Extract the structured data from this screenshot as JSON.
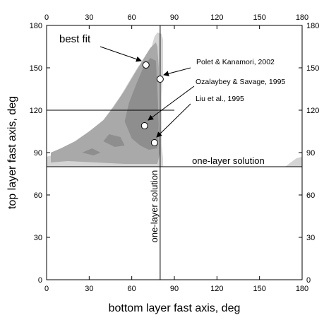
{
  "chart_data": {
    "type": "heatmap",
    "xlabel": "bottom layer fast axis, deg",
    "ylabel": "top layer fast axis, deg",
    "xlim": [
      0,
      180
    ],
    "ylim": [
      0,
      180
    ],
    "xticks": [
      "0",
      "30",
      "60",
      "90",
      "120",
      "150",
      "180"
    ],
    "yticks": [
      "0",
      "30",
      "60",
      "90",
      "120",
      "150",
      "180"
    ],
    "top_axis_ticks": [
      "0",
      "30",
      "60",
      "90",
      "120",
      "150",
      "180"
    ],
    "right_axis_ticks": [
      "0",
      "30",
      "60",
      "90",
      "120",
      "150",
      "180"
    ],
    "grid": false,
    "colors": {
      "region_outer": "#d4d4d4",
      "region_mid": "#a9a9a9",
      "region_inner": "#8e8e8e",
      "lines": "#000000",
      "point_fill": "#ffffff"
    },
    "confidence_regions": [
      {
        "level": "outer",
        "polygon": [
          [
            0,
            80
          ],
          [
            48,
            80
          ],
          [
            58,
            80
          ],
          [
            72,
            80
          ],
          [
            82,
            80
          ],
          [
            82,
            86
          ],
          [
            81,
            96
          ],
          [
            81,
            110
          ],
          [
            81,
            130
          ],
          [
            82,
            145
          ],
          [
            82,
            158
          ],
          [
            82,
            170
          ],
          [
            81,
            174
          ],
          [
            78,
            175
          ],
          [
            76,
            172
          ],
          [
            74,
            165
          ],
          [
            70,
            158
          ],
          [
            64,
            150
          ],
          [
            58,
            140
          ],
          [
            52,
            130
          ],
          [
            45,
            120
          ],
          [
            38,
            110
          ],
          [
            30,
            102
          ],
          [
            20,
            95
          ],
          [
            10,
            90
          ],
          [
            0,
            87
          ]
        ]
      },
      {
        "level": "outer",
        "polygon": [
          [
            168,
            80
          ],
          [
            180,
            80
          ],
          [
            180,
            87
          ],
          [
            176,
            86
          ],
          [
            172,
            83
          ]
        ]
      },
      {
        "level": "mid",
        "polygon": [
          [
            3,
            83
          ],
          [
            15,
            84
          ],
          [
            35,
            83
          ],
          [
            55,
            82
          ],
          [
            68,
            82
          ],
          [
            78,
            82
          ],
          [
            80,
            90
          ],
          [
            79,
            110
          ],
          [
            79,
            130
          ],
          [
            79,
            150
          ],
          [
            78,
            165
          ],
          [
            77,
            168
          ],
          [
            73,
            164
          ],
          [
            68,
            156
          ],
          [
            62,
            146
          ],
          [
            55,
            134
          ],
          [
            47,
            122
          ],
          [
            40,
            113
          ],
          [
            30,
            105
          ],
          [
            20,
            98
          ],
          [
            10,
            93
          ],
          [
            3,
            90
          ]
        ]
      },
      {
        "level": "inner",
        "polygon": [
          [
            60,
            100
          ],
          [
            66,
            95
          ],
          [
            72,
            92
          ],
          [
            78,
            93
          ],
          [
            79,
            110
          ],
          [
            78,
            135
          ],
          [
            77,
            155
          ],
          [
            73,
            157
          ],
          [
            68,
            150
          ],
          [
            63,
            138
          ],
          [
            58,
            125
          ],
          [
            55,
            112
          ]
        ]
      },
      {
        "level": "inner",
        "polygon": [
          [
            40,
            98
          ],
          [
            48,
            94
          ],
          [
            55,
            95
          ],
          [
            52,
            101
          ],
          [
            44,
            103
          ]
        ]
      },
      {
        "level": "inner",
        "polygon": [
          [
            25,
            90
          ],
          [
            33,
            88
          ],
          [
            38,
            90
          ],
          [
            32,
            93
          ]
        ]
      }
    ],
    "reference_lines": [
      {
        "orientation": "vertical",
        "x": 80,
        "label": "one-layer solution"
      },
      {
        "orientation": "horizontal",
        "y": 80,
        "label": "one-layer solution"
      },
      {
        "orientation": "horizontal",
        "y": 120,
        "x_range": [
          0,
          90
        ]
      }
    ],
    "points": [
      {
        "label": "best fit",
        "x": 70,
        "y": 152
      },
      {
        "label": "Polet & Kanamori, 2002",
        "x": 80,
        "y": 142
      },
      {
        "label": "Ozalaybey & Savage, 1995",
        "x": 69,
        "y": 109
      },
      {
        "label": "Liu et al., 1995",
        "x": 76,
        "y": 97
      }
    ]
  }
}
